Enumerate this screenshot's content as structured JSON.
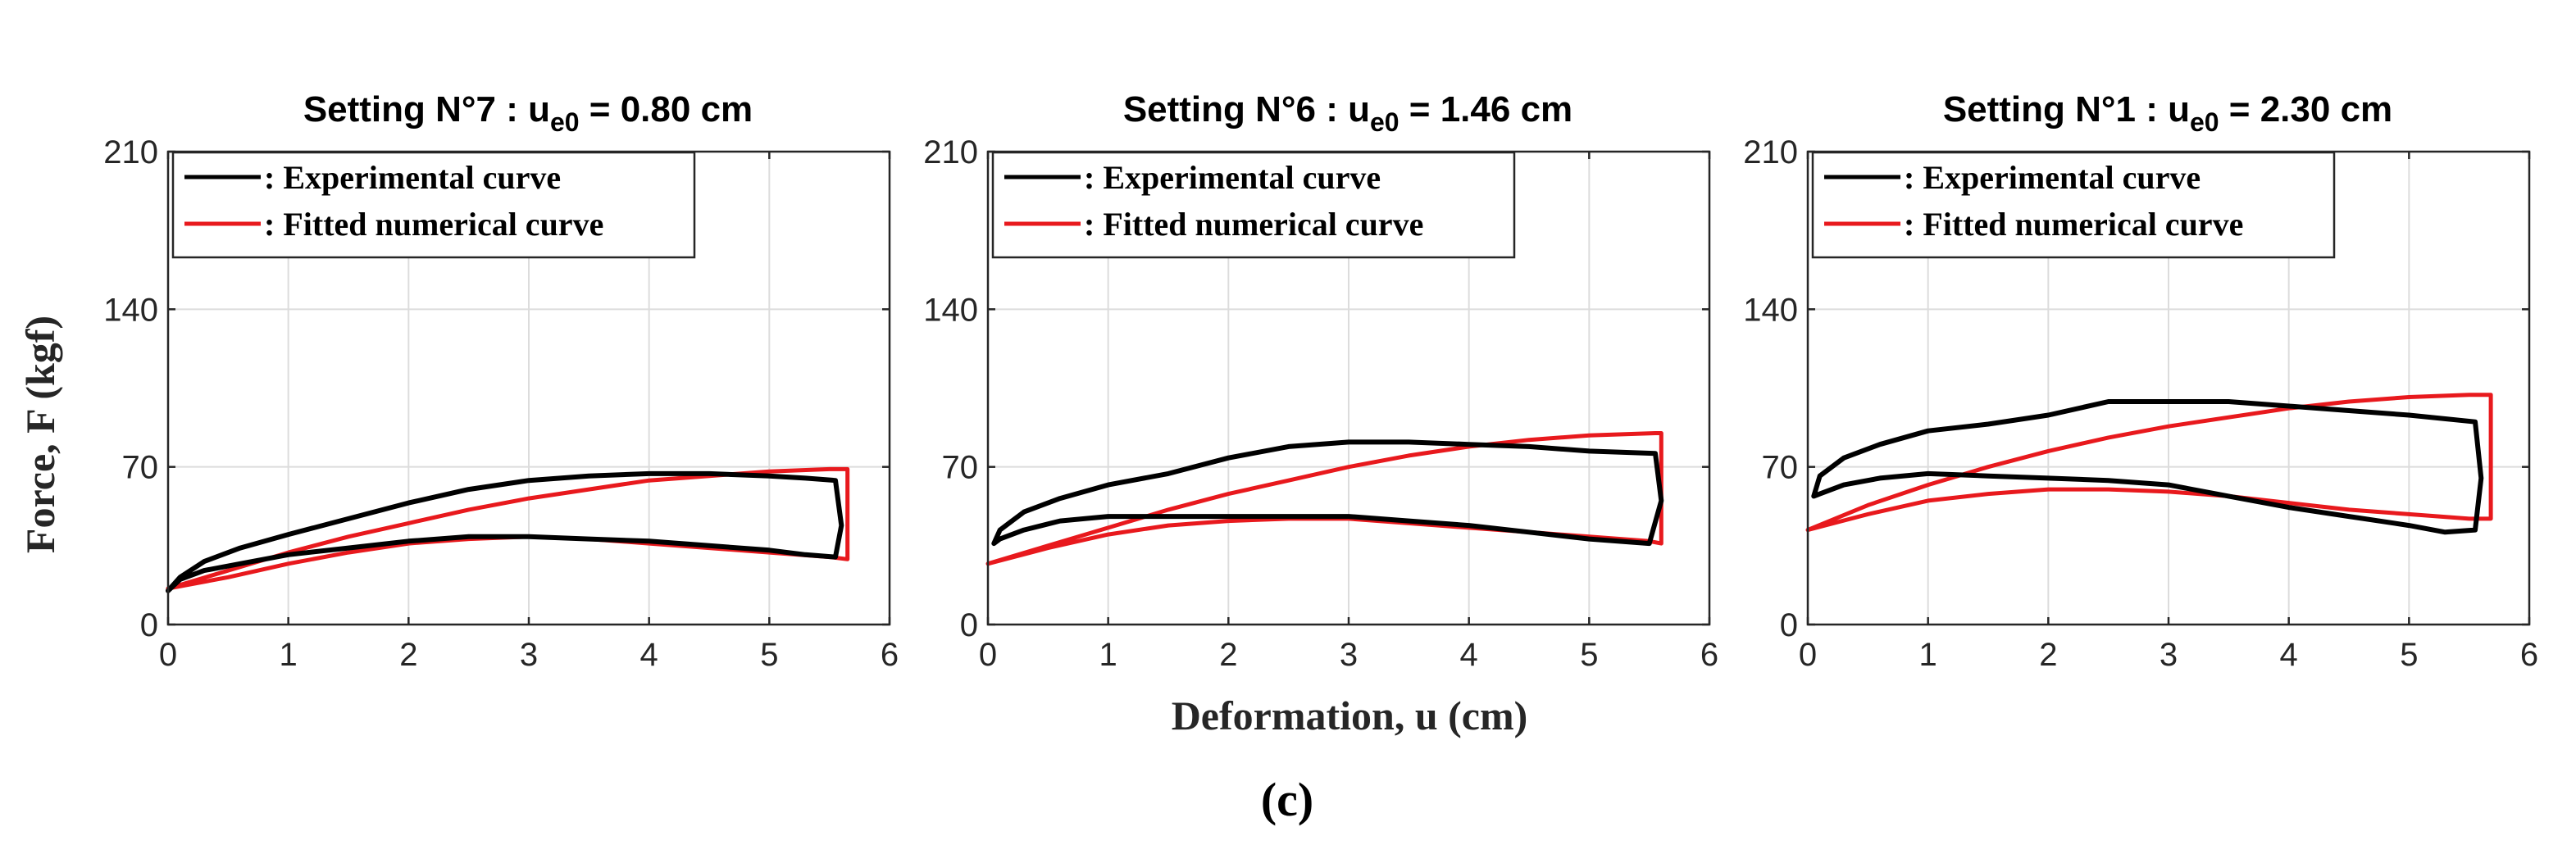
{
  "figure": {
    "caption": "(c)",
    "common_xlabel": "Deformation, u (cm)",
    "common_ylabel": "Force, F (kgf)"
  },
  "colors": {
    "experimental": "#000000",
    "numerical": "#e8191d",
    "axis": "#262626",
    "grid": "#dcdcdc"
  },
  "chart_data": [
    {
      "type": "line",
      "title_prefix": "Setting N°7 : u",
      "title_sub": "e0",
      "title_suffix": " = 0.80 cm",
      "xlim": [
        0,
        6
      ],
      "ylim": [
        0,
        210
      ],
      "xticks": [
        0,
        1,
        2,
        3,
        4,
        5,
        6
      ],
      "yticks": [
        0,
        70,
        140,
        210
      ],
      "legend": {
        "placement": "top-left",
        "entries": [
          ": Experimental curve",
          ": Fitted numerical curve"
        ]
      },
      "series": [
        {
          "name": ": Experimental curve",
          "kind": "experimental",
          "x": [
            0,
            0.1,
            0.3,
            0.6,
            1.0,
            1.5,
            2.0,
            2.5,
            3.0,
            3.5,
            4.0,
            4.5,
            5.0,
            5.3,
            5.55,
            5.6,
            5.55,
            5.3,
            5.0,
            4.5,
            4.0,
            3.5,
            3.0,
            2.5,
            2.0,
            1.5,
            1.0,
            0.6,
            0.3,
            0.1,
            0
          ],
          "y": [
            15,
            21,
            28,
            34,
            40,
            47,
            54,
            60,
            64,
            66,
            67,
            67,
            66,
            65,
            64,
            44,
            30,
            31,
            33,
            35,
            37,
            38,
            39,
            39,
            37,
            34,
            31,
            27,
            24,
            20,
            15
          ]
        },
        {
          "name": ": Fitted numerical curve",
          "kind": "numerical",
          "x": [
            0,
            0.5,
            1.0,
            1.5,
            2.0,
            2.5,
            3.0,
            3.5,
            4.0,
            4.5,
            5.0,
            5.5,
            5.65,
            5.65,
            5.5,
            5.0,
            4.5,
            4.0,
            3.5,
            3.0,
            2.5,
            2.0,
            1.5,
            1.0,
            0.5,
            0
          ],
          "y": [
            16,
            24,
            32,
            39,
            45,
            51,
            56,
            60,
            64,
            66,
            68,
            69,
            69,
            29,
            30,
            32,
            34,
            36,
            38,
            39,
            38,
            36,
            32,
            27,
            21,
            16
          ]
        }
      ]
    },
    {
      "type": "line",
      "title_prefix": "Setting N°6 : u",
      "title_sub": "e0",
      "title_suffix": " = 1.46 cm",
      "xlim": [
        0,
        6
      ],
      "ylim": [
        0,
        210
      ],
      "xticks": [
        0,
        1,
        2,
        3,
        4,
        5,
        6
      ],
      "yticks": [
        0,
        70,
        140,
        210
      ],
      "legend": {
        "placement": "top-left",
        "entries": [
          ": Experimental curve",
          ": Fitted numerical curve"
        ]
      },
      "series": [
        {
          "name": ": Experimental curve",
          "kind": "experimental",
          "x": [
            0.05,
            0.1,
            0.3,
            0.6,
            1.0,
            1.5,
            2.0,
            2.5,
            3.0,
            3.5,
            4.0,
            4.5,
            5.0,
            5.55,
            5.6,
            5.5,
            5.0,
            4.5,
            4.0,
            3.5,
            3.0,
            2.5,
            2.0,
            1.5,
            1.0,
            0.6,
            0.3,
            0.1,
            0.05
          ],
          "y": [
            36,
            42,
            50,
            56,
            62,
            67,
            74,
            79,
            81,
            81,
            80,
            79,
            77,
            76,
            55,
            36,
            38,
            41,
            44,
            46,
            48,
            48,
            48,
            48,
            48,
            46,
            42,
            38,
            36
          ]
        },
        {
          "name": ": Fitted numerical curve",
          "kind": "numerical",
          "x": [
            0,
            0.5,
            1.0,
            1.5,
            2.0,
            2.5,
            3.0,
            3.5,
            4.0,
            4.5,
            5.0,
            5.55,
            5.6,
            5.6,
            5.5,
            5.0,
            4.5,
            4.0,
            3.5,
            3.0,
            2.5,
            2.0,
            1.5,
            1.0,
            0.5,
            0
          ],
          "y": [
            27,
            35,
            43,
            51,
            58,
            64,
            70,
            75,
            79,
            82,
            84,
            85,
            85,
            36,
            37,
            39,
            41,
            43,
            45,
            47,
            47,
            46,
            44,
            40,
            34,
            27
          ]
        }
      ]
    },
    {
      "type": "line",
      "title_prefix": "Setting N°1  : u",
      "title_sub": "e0",
      "title_suffix": " = 2.30 cm",
      "xlim": [
        0,
        6
      ],
      "ylim": [
        0,
        210
      ],
      "xticks": [
        0,
        1,
        2,
        3,
        4,
        5,
        6
      ],
      "yticks": [
        0,
        70,
        140,
        210
      ],
      "legend": {
        "placement": "top-left",
        "entries": [
          ": Experimental curve",
          ": Fitted numerical curve"
        ]
      },
      "series": [
        {
          "name": ": Experimental curve",
          "kind": "experimental",
          "x": [
            0.05,
            0.1,
            0.3,
            0.6,
            1.0,
            1.5,
            2.0,
            2.5,
            3.0,
            3.5,
            4.0,
            4.5,
            5.0,
            5.55,
            5.6,
            5.55,
            5.3,
            5.0,
            4.5,
            4.0,
            3.5,
            3.0,
            2.5,
            2.0,
            1.5,
            1.0,
            0.6,
            0.3,
            0.1,
            0.05
          ],
          "y": [
            57,
            66,
            74,
            80,
            86,
            89,
            93,
            99,
            99,
            99,
            97,
            95,
            93,
            90,
            65,
            42,
            41,
            44,
            48,
            52,
            57,
            62,
            64,
            65,
            66,
            67,
            65,
            62,
            58,
            57
          ]
        },
        {
          "name": ": Fitted numerical curve",
          "kind": "numerical",
          "x": [
            0,
            0.5,
            1.0,
            1.5,
            2.0,
            2.5,
            3.0,
            3.5,
            4.0,
            4.5,
            5.0,
            5.5,
            5.68,
            5.68,
            5.5,
            5.0,
            4.5,
            4.0,
            3.5,
            3.0,
            2.5,
            2.0,
            1.5,
            1.0,
            0.5,
            0
          ],
          "y": [
            42,
            53,
            62,
            70,
            77,
            83,
            88,
            92,
            96,
            99,
            101,
            102,
            102,
            47,
            47,
            49,
            51,
            54,
            57,
            59,
            60,
            60,
            58,
            55,
            49,
            42
          ]
        }
      ]
    }
  ]
}
